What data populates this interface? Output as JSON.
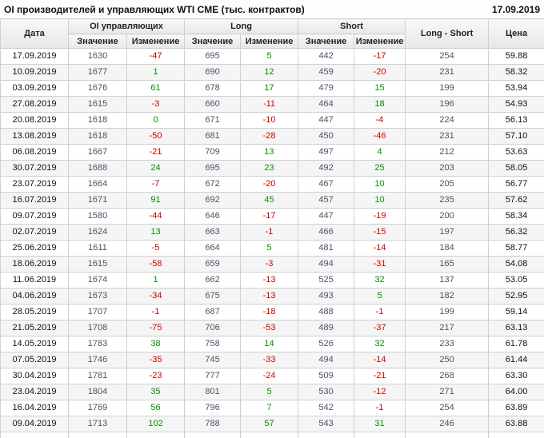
{
  "header": {
    "title": "OI производителей и управляющих WTI CME (тыс. контрактов)",
    "report_date": "17.09.2019"
  },
  "colors": {
    "positive": "#008f00",
    "negative": "#cc0000",
    "value_text": "#44546a",
    "header_bg_top": "#f8f8f8",
    "header_bg_bottom": "#e7e7e7",
    "row_alt_bg": "#f5f5f5",
    "border": "#d0d0d0"
  },
  "table": {
    "headers": {
      "date": "Дата",
      "oi_group": "OI управляющих",
      "long_group": "Long",
      "short_group": "Short",
      "value": "Значение",
      "change": "Изменение",
      "net": "Long - Short",
      "price": "Цена"
    },
    "columns": [
      "date",
      "value",
      "change",
      "value",
      "change",
      "value",
      "change",
      "net",
      "price"
    ],
    "rows": [
      [
        "17.09.2019",
        "1630",
        "-47",
        "695",
        "5",
        "442",
        "-17",
        "254",
        "59.88"
      ],
      [
        "10.09.2019",
        "1677",
        "1",
        "690",
        "12",
        "459",
        "-20",
        "231",
        "58.32"
      ],
      [
        "03.09.2019",
        "1676",
        "61",
        "678",
        "17",
        "479",
        "15",
        "199",
        "53.94"
      ],
      [
        "27.08.2019",
        "1615",
        "-3",
        "660",
        "-11",
        "464",
        "18",
        "196",
        "54.93"
      ],
      [
        "20.08.2019",
        "1618",
        "0",
        "671",
        "-10",
        "447",
        "-4",
        "224",
        "56.13"
      ],
      [
        "13.08.2019",
        "1618",
        "-50",
        "681",
        "-28",
        "450",
        "-46",
        "231",
        "57.10"
      ],
      [
        "06.08.2019",
        "1667",
        "-21",
        "709",
        "13",
        "497",
        "4",
        "212",
        "53.63"
      ],
      [
        "30.07.2019",
        "1688",
        "24",
        "695",
        "23",
        "492",
        "25",
        "203",
        "58.05"
      ],
      [
        "23.07.2019",
        "1664",
        "-7",
        "672",
        "-20",
        "467",
        "10",
        "205",
        "56.77"
      ],
      [
        "16.07.2019",
        "1671",
        "91",
        "692",
        "45",
        "457",
        "10",
        "235",
        "57.62"
      ],
      [
        "09.07.2019",
        "1580",
        "-44",
        "646",
        "-17",
        "447",
        "-19",
        "200",
        "58.34"
      ],
      [
        "02.07.2019",
        "1624",
        "13",
        "663",
        "-1",
        "466",
        "-15",
        "197",
        "56.32"
      ],
      [
        "25.06.2019",
        "1611",
        "-5",
        "664",
        "5",
        "481",
        "-14",
        "184",
        "58.77"
      ],
      [
        "18.06.2019",
        "1615",
        "-58",
        "659",
        "-3",
        "494",
        "-31",
        "165",
        "54.08"
      ],
      [
        "11.06.2019",
        "1674",
        "1",
        "662",
        "-13",
        "525",
        "32",
        "137",
        "53.05"
      ],
      [
        "04.06.2019",
        "1673",
        "-34",
        "675",
        "-13",
        "493",
        "5",
        "182",
        "52.95"
      ],
      [
        "28.05.2019",
        "1707",
        "-1",
        "687",
        "-18",
        "488",
        "-1",
        "199",
        "59.14"
      ],
      [
        "21.05.2019",
        "1708",
        "-75",
        "706",
        "-53",
        "489",
        "-37",
        "217",
        "63.13"
      ],
      [
        "14.05.2019",
        "1783",
        "38",
        "758",
        "14",
        "526",
        "32",
        "233",
        "61.78"
      ],
      [
        "07.05.2019",
        "1746",
        "-35",
        "745",
        "-33",
        "494",
        "-14",
        "250",
        "61.44"
      ],
      [
        "30.04.2019",
        "1781",
        "-23",
        "777",
        "-24",
        "509",
        "-21",
        "268",
        "63.30"
      ],
      [
        "23.04.2019",
        "1804",
        "35",
        "801",
        "5",
        "530",
        "-12",
        "271",
        "64.00"
      ],
      [
        "16.04.2019",
        "1769",
        "56",
        "796",
        "7",
        "542",
        "-1",
        "254",
        "63.89"
      ],
      [
        "09.04.2019",
        "1713",
        "102",
        "788",
        "57",
        "543",
        "31",
        "246",
        "63.88"
      ]
    ]
  }
}
